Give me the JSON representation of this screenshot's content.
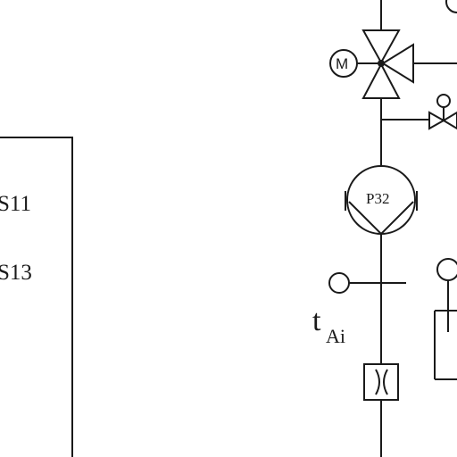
{
  "diagram": {
    "box_labels": [
      "S11",
      "S13"
    ],
    "pump_label": "P32",
    "motor_label": "M",
    "sensor_label_main": "t",
    "sensor_label_sub": "Ai"
  }
}
